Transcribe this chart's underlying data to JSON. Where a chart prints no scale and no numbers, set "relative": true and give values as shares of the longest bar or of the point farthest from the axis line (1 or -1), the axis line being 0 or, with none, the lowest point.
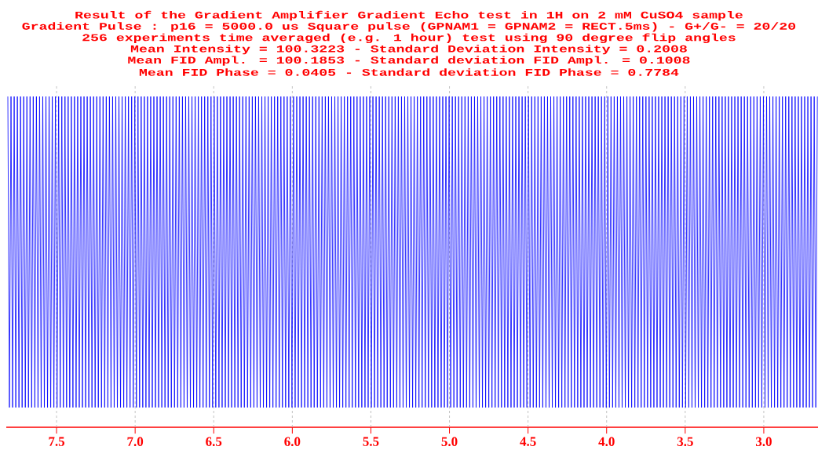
{
  "chart_data": {
    "type": "line",
    "title": "Result of the Gradient Amplifier Gradient Echo test in 1H on 2 mM CuSO4 sample",
    "subtitle": "Gradient Pulse : p16 = 5000.0 us Square pulse (GPNAM1 = GPNAM2 = RECT.5ms) - G+/G- = 20/20",
    "annotations": [
      "256 experiments time averaged (e.g. 1 hour) test using 90 degree flip angles",
      "Mean Intensity = 100.3223 - Standard Deviation Intensity = 0.2008",
      "Mean FID Ampl. = 100.1853 - Standard deviation FID Ampl. = 0.1008",
      "Mean FID Phase = 0.0405 - Standard deviation FID Phase = 0.7784"
    ],
    "relative": true,
    "color": "#0000ff",
    "grid": "x",
    "xlim": [
      7.82,
      2.655
    ],
    "xticks": [
      {
        "value": 7.5,
        "label": "7.5"
      },
      {
        "value": 7.0,
        "label": "7.0"
      },
      {
        "value": 6.5,
        "label": "6.5"
      },
      {
        "value": 6.0,
        "label": "6.0"
      },
      {
        "value": 5.5,
        "label": "5.5"
      },
      {
        "value": 5.0,
        "label": "5.0"
      },
      {
        "value": 4.5,
        "label": "4.5"
      },
      {
        "value": 4.0,
        "label": "4.0"
      },
      {
        "value": 3.5,
        "label": "3.5"
      },
      {
        "value": 3.0,
        "label": "3.0"
      }
    ],
    "x": [
      7.81,
      7.7999,
      7.7898,
      7.7797,
      7.7696,
      7.7595,
      7.7494,
      7.7393,
      7.7292,
      7.7191,
      7.709,
      7.6989,
      7.6888,
      7.6787,
      7.6686,
      7.6585,
      7.6484,
      7.6383,
      7.6282,
      7.6181,
      7.608,
      7.5979,
      7.5878,
      7.5777,
      7.5676,
      7.5575,
      7.5474,
      7.5373,
      7.5272,
      7.5171,
      7.507,
      7.4969,
      7.4868,
      7.4767,
      7.4666,
      7.4565,
      7.4464,
      7.4363,
      7.4262,
      7.4161,
      7.406,
      7.3959,
      7.3858,
      7.3757,
      7.3656,
      7.3555,
      7.3454,
      7.3353,
      7.3252,
      7.3151,
      7.305,
      7.2949,
      7.2848,
      7.2747,
      7.2646,
      7.2545,
      7.2444,
      7.2343,
      7.2242,
      7.2141,
      7.204,
      7.1939,
      7.1838,
      7.1737,
      7.1636,
      7.1535,
      7.1434,
      7.1333,
      7.1232,
      7.1131,
      7.103,
      7.0929,
      7.0828,
      7.0727,
      7.0626,
      7.0525,
      7.0424,
      7.0323,
      7.0222,
      7.0121,
      7.002,
      6.9919,
      6.9818,
      6.9717,
      6.9616,
      6.9515,
      6.9414,
      6.9313,
      6.9212,
      6.9111,
      6.901,
      6.8909,
      6.8808,
      6.8707,
      6.8606,
      6.8505,
      6.8404,
      6.8303,
      6.8202,
      6.8101,
      6.8,
      6.7899,
      6.7798,
      6.7697,
      6.7596,
      6.7495,
      6.7394,
      6.7293,
      6.7192,
      6.7091,
      6.699,
      6.6889,
      6.6788,
      6.6687,
      6.6586,
      6.6485,
      6.6384,
      6.6283,
      6.6182,
      6.6081,
      6.598,
      6.5879,
      6.5778,
      6.5677,
      6.5576,
      6.5475,
      6.5374,
      6.5273,
      6.5172,
      6.5071,
      6.497,
      6.4869,
      6.4768,
      6.4667,
      6.4566,
      6.4465,
      6.4364,
      6.4263,
      6.4162,
      6.4061,
      6.396,
      6.3859,
      6.3758,
      6.3657,
      6.3556,
      6.3455,
      6.3354,
      6.3253,
      6.3152,
      6.3051,
      6.295,
      6.2849,
      6.2748,
      6.2647,
      6.2546,
      6.2445,
      6.2344,
      6.2243,
      6.2142,
      6.2041,
      6.194,
      6.1839,
      6.1738,
      6.1637,
      6.1536,
      6.1435,
      6.1334,
      6.1233,
      6.1132,
      6.1031,
      6.093,
      6.0829,
      6.0728,
      6.0627,
      6.0526,
      6.0425,
      6.0324,
      6.0223,
      6.0122,
      6.0021,
      5.992,
      5.9819,
      5.9718,
      5.9617,
      5.9516,
      5.9415,
      5.9314,
      5.9213,
      5.9112,
      5.9011,
      5.891,
      5.8809,
      5.8708,
      5.8607,
      5.8506,
      5.8405,
      5.8304,
      5.8203,
      5.8102,
      5.8001,
      5.79,
      5.7799,
      5.7698,
      5.7597,
      5.7496,
      5.7395,
      5.7294,
      5.7193,
      5.7092,
      5.6991,
      5.689,
      5.6789,
      5.6688,
      5.6587,
      5.6486,
      5.6385,
      5.6284,
      5.6183,
      5.6082,
      5.5981,
      5.588,
      5.5779,
      5.5678,
      5.5577,
      5.5476,
      5.5375,
      5.5274,
      5.5173,
      5.5072,
      5.4971,
      5.487,
      5.4769,
      5.4668,
      5.4567,
      5.4466,
      5.4365,
      5.4264,
      5.4163,
      5.4062,
      5.3961,
      5.386,
      5.3759,
      5.3658,
      5.3557,
      5.3456,
      5.3355,
      5.3254,
      5.3153,
      5.3052,
      5.2951,
      5.285,
      5.2749,
      5.2648,
      5.2547,
      5.2446,
      5.2345,
      5.2244,
      5.2143,
      5.2042,
      5.1941,
      5.184,
      5.1739,
      5.1638,
      5.1537,
      5.1436,
      5.1335,
      5.1234,
      5.1133,
      5.1032,
      5.0931,
      5.083,
      5.0729,
      5.0628,
      5.0527,
      5.0426,
      5.0325,
      5.0224,
      5.0123,
      5.0022,
      4.9921,
      4.982,
      4.9719,
      4.9618,
      4.9517,
      4.9416,
      4.9315,
      4.9214,
      4.9113,
      4.9012,
      4.8911,
      4.881,
      4.8709,
      4.8608,
      4.8507,
      4.8406,
      4.8305,
      4.8204,
      4.8103,
      4.8002,
      4.7901,
      4.78,
      4.7699,
      4.7598,
      4.7497,
      4.7396,
      4.7295,
      4.7194,
      4.7093,
      4.6992,
      4.6891,
      4.679,
      4.6689,
      4.6588,
      4.6487,
      4.6386,
      4.6285,
      4.6184,
      4.6083,
      4.5982,
      4.5881,
      4.578,
      4.5679,
      4.5578,
      4.5477,
      4.5376,
      4.5275,
      4.5174,
      4.5073,
      4.4972,
      4.4871,
      4.477,
      4.4669,
      4.4568,
      4.4467,
      4.4366,
      4.4265,
      4.4164,
      4.4063,
      4.3962,
      4.3861,
      4.376,
      4.3659,
      4.3558,
      4.3457,
      4.3356,
      4.3255,
      4.3154,
      4.3053,
      4.2952,
      4.2851,
      4.275,
      4.2649,
      4.2548,
      4.2447,
      4.2346,
      4.2245,
      4.2144,
      4.2043,
      4.1942,
      4.1841,
      4.174,
      4.1639,
      4.1538,
      4.1437,
      4.1336,
      4.1235,
      4.1134,
      4.1033,
      4.0932,
      4.0831,
      4.073,
      4.0629,
      4.0528,
      4.0427,
      4.0326,
      4.0225,
      4.0124,
      4.0023,
      3.9922,
      3.9821,
      3.972,
      3.9619,
      3.9518,
      3.9417,
      3.9316,
      3.9215,
      3.9114,
      3.9013,
      3.8912,
      3.8811,
      3.871,
      3.8609,
      3.8508,
      3.8407,
      3.8306,
      3.8205,
      3.8104,
      3.8003,
      3.7902,
      3.7801,
      3.77,
      3.7599,
      3.7498,
      3.7397,
      3.7296,
      3.7195,
      3.7094,
      3.6993,
      3.6892,
      3.6791,
      3.669,
      3.6589,
      3.6488,
      3.6387,
      3.6286,
      3.6185,
      3.6084,
      3.5983,
      3.5882,
      3.5781,
      3.568,
      3.5579,
      3.5478,
      3.5377,
      3.5276,
      3.5175,
      3.5074,
      3.4973,
      3.4872,
      3.4771,
      3.467,
      3.4569,
      3.4468,
      3.4367,
      3.4266,
      3.4165,
      3.4064,
      3.3963,
      3.3862,
      3.3761,
      3.366,
      3.3559,
      3.3458,
      3.3357,
      3.3256,
      3.3155,
      3.3054,
      3.2953,
      3.2852,
      3.2751,
      3.265,
      3.2549,
      3.2448,
      3.2347,
      3.2246,
      3.2145,
      3.2044,
      3.1943,
      3.1842,
      3.1741,
      3.164,
      3.1539,
      3.1438,
      3.1337,
      3.1236,
      3.1135,
      3.1034,
      3.0933,
      3.0832,
      3.0731,
      3.063,
      3.0529,
      3.0428,
      3.0327,
      3.0226,
      3.0125,
      3.0024,
      2.9923,
      2.9822,
      2.9721,
      2.962,
      2.9519,
      2.9418,
      2.9317,
      2.9216,
      2.9115,
      2.9014,
      2.8913,
      2.8812,
      2.8711,
      2.861,
      2.8509,
      2.8408,
      2.8307,
      2.8206,
      2.8105,
      2.8004,
      2.7903,
      2.7802,
      2.7701,
      2.76,
      2.7499,
      2.7398,
      2.7297,
      2.7196,
      2.7095,
      2.6994,
      2.6893,
      2.6792,
      2.6691,
      2.659
    ],
    "values": [
      1,
      0.06,
      1,
      0.06,
      1,
      0.06,
      1,
      0.06,
      1,
      0.06,
      1,
      0.06,
      1,
      0.06,
      1,
      0.06,
      1,
      0.06,
      1,
      0.06,
      1,
      0.06,
      1,
      0.06,
      1,
      0.06,
      1,
      0.06,
      1,
      0.06,
      1,
      0.06,
      1,
      0.06,
      1,
      0.06,
      1,
      0.06,
      1,
      0.06,
      1,
      0.06,
      1,
      0.06,
      1,
      0.06,
      1,
      0.06,
      1,
      0.06,
      1,
      0.06,
      1,
      0.06,
      1,
      0.06,
      1,
      0.06,
      1,
      0.06,
      1,
      0.06,
      1,
      0.06,
      1,
      0.06,
      1,
      0.06,
      1,
      0.06,
      1,
      0.06,
      1,
      0.06,
      1,
      0.06,
      1,
      0.06,
      1,
      0.06,
      1,
      0.06,
      1,
      0.06,
      1,
      0.06,
      1,
      0.06,
      1,
      0.06,
      1,
      0.06,
      1,
      0.06,
      1,
      0.06,
      1,
      0.06,
      1,
      0.06,
      1,
      0.06,
      1,
      0.06,
      1,
      0.06,
      1,
      0.06,
      1,
      0.06,
      1,
      0.06,
      1,
      0.06,
      1,
      0.06,
      1,
      0.06,
      1,
      0.06,
      1,
      0.06,
      1,
      0.06,
      1,
      0.06,
      1,
      0.06,
      1,
      0.06,
      1,
      0.06,
      1,
      0.06,
      1,
      0.06,
      1,
      0.06,
      1,
      0.06,
      1,
      0.06,
      1,
      0.06,
      1,
      0.06,
      1,
      0.06,
      1,
      0.06,
      1,
      0.06,
      1,
      0.06,
      1,
      0.06,
      1,
      0.06,
      1,
      0.06,
      1,
      0.06,
      1,
      0.06,
      1,
      0.06,
      1,
      0.06,
      1,
      0.06,
      1,
      0.06,
      1,
      0.06,
      1,
      0.06,
      1,
      0.06,
      1,
      0.06,
      1,
      0.06,
      1,
      0.06,
      1,
      0.06,
      1,
      0.06,
      1,
      0.06,
      1,
      0.06,
      1,
      0.06,
      1,
      0.06,
      1,
      0.06,
      1,
      0.06,
      1,
      0.06,
      1,
      0.06,
      1,
      0.06,
      1,
      0.06,
      1,
      0.06,
      1,
      0.06,
      1,
      0.06,
      1,
      0.06,
      1,
      0.06,
      1,
      0.06,
      1,
      0.06,
      1,
      0.06,
      1,
      0.06,
      1,
      0.06,
      1,
      0.06,
      1,
      0.06,
      1,
      0.06,
      1,
      0.06,
      1,
      0.06,
      1,
      0.06,
      1,
      0.06,
      1,
      0.06,
      1,
      0.06,
      1,
      0.06,
      1,
      0.06,
      1,
      0.06,
      1,
      0.06,
      1,
      0.06,
      1,
      0.06,
      1,
      0.06,
      1,
      0.06,
      1,
      0.06,
      1,
      0.06,
      1,
      0.06,
      1,
      0.06,
      1,
      0.06,
      1,
      0.06,
      1,
      0.06,
      1,
      0.06,
      1,
      0.06,
      1,
      0.06,
      1,
      0.06,
      1,
      0.06,
      1,
      0.06,
      1,
      0.06,
      1,
      0.06,
      1,
      0.06,
      1,
      0.06,
      1,
      0.06,
      1,
      0.06,
      1,
      0.06,
      1,
      0.06,
      1,
      0.06,
      1,
      0.06,
      1,
      0.06,
      1,
      0.06,
      1,
      0.06,
      1,
      0.06,
      1,
      0.06,
      1,
      0.06,
      1,
      0.06,
      1,
      0.06,
      1,
      0.06,
      1,
      0.06,
      1,
      0.06,
      1,
      0.06,
      1,
      0.06,
      1,
      0.06,
      1,
      0.06,
      1,
      0.06,
      1,
      0.06,
      1,
      0.06,
      1,
      0.06,
      1,
      0.06,
      1,
      0.06,
      1,
      0.06,
      1,
      0.06,
      1,
      0.06,
      1,
      0.06,
      1,
      0.06,
      1,
      0.06,
      1,
      0.06,
      1,
      0.06,
      1,
      0.06,
      1,
      0.06,
      1,
      0.06,
      1,
      0.06,
      1,
      0.06,
      1,
      0.06,
      1,
      0.06,
      1,
      0.06,
      1,
      0.06,
      1,
      0.06,
      1,
      0.06,
      1,
      0.06,
      1,
      0.06,
      1,
      0.06,
      1,
      0.06,
      1,
      0.06,
      1,
      0.06,
      1,
      0.06,
      1,
      0.06,
      1,
      0.06,
      1,
      0.06,
      1,
      0.06,
      1,
      0.06,
      1,
      0.06,
      1,
      0.06,
      1,
      0.06,
      1,
      0.06,
      1,
      0.06,
      1,
      0.06,
      1,
      0.06,
      1,
      0.06,
      1,
      0.06,
      1,
      0.06,
      1,
      0.06,
      1,
      0.06,
      1,
      0.06,
      1,
      0.06,
      1,
      0.06,
      1,
      0.06,
      1,
      0.06,
      1,
      0.06,
      1,
      0.06,
      1,
      0.06,
      1,
      0.06,
      1,
      0.06,
      1,
      0.06,
      1,
      0.06,
      1,
      0.06,
      1,
      0.06,
      1,
      0.06,
      1,
      0.06,
      1,
      0.06,
      1,
      0.06,
      1,
      0.06,
      1,
      0.06,
      1,
      0.06,
      1,
      0.06,
      1,
      0.06,
      1,
      0.06,
      1,
      0.06,
      1,
      0.06,
      1,
      0.06,
      1,
      0.06,
      1,
      0.06,
      1,
      0.06,
      1,
      0.06,
      1,
      0.06,
      1,
      0.06,
      1,
      0.06,
      1,
      0.06,
      1,
      0.06,
      1,
      0.06,
      1
    ]
  }
}
